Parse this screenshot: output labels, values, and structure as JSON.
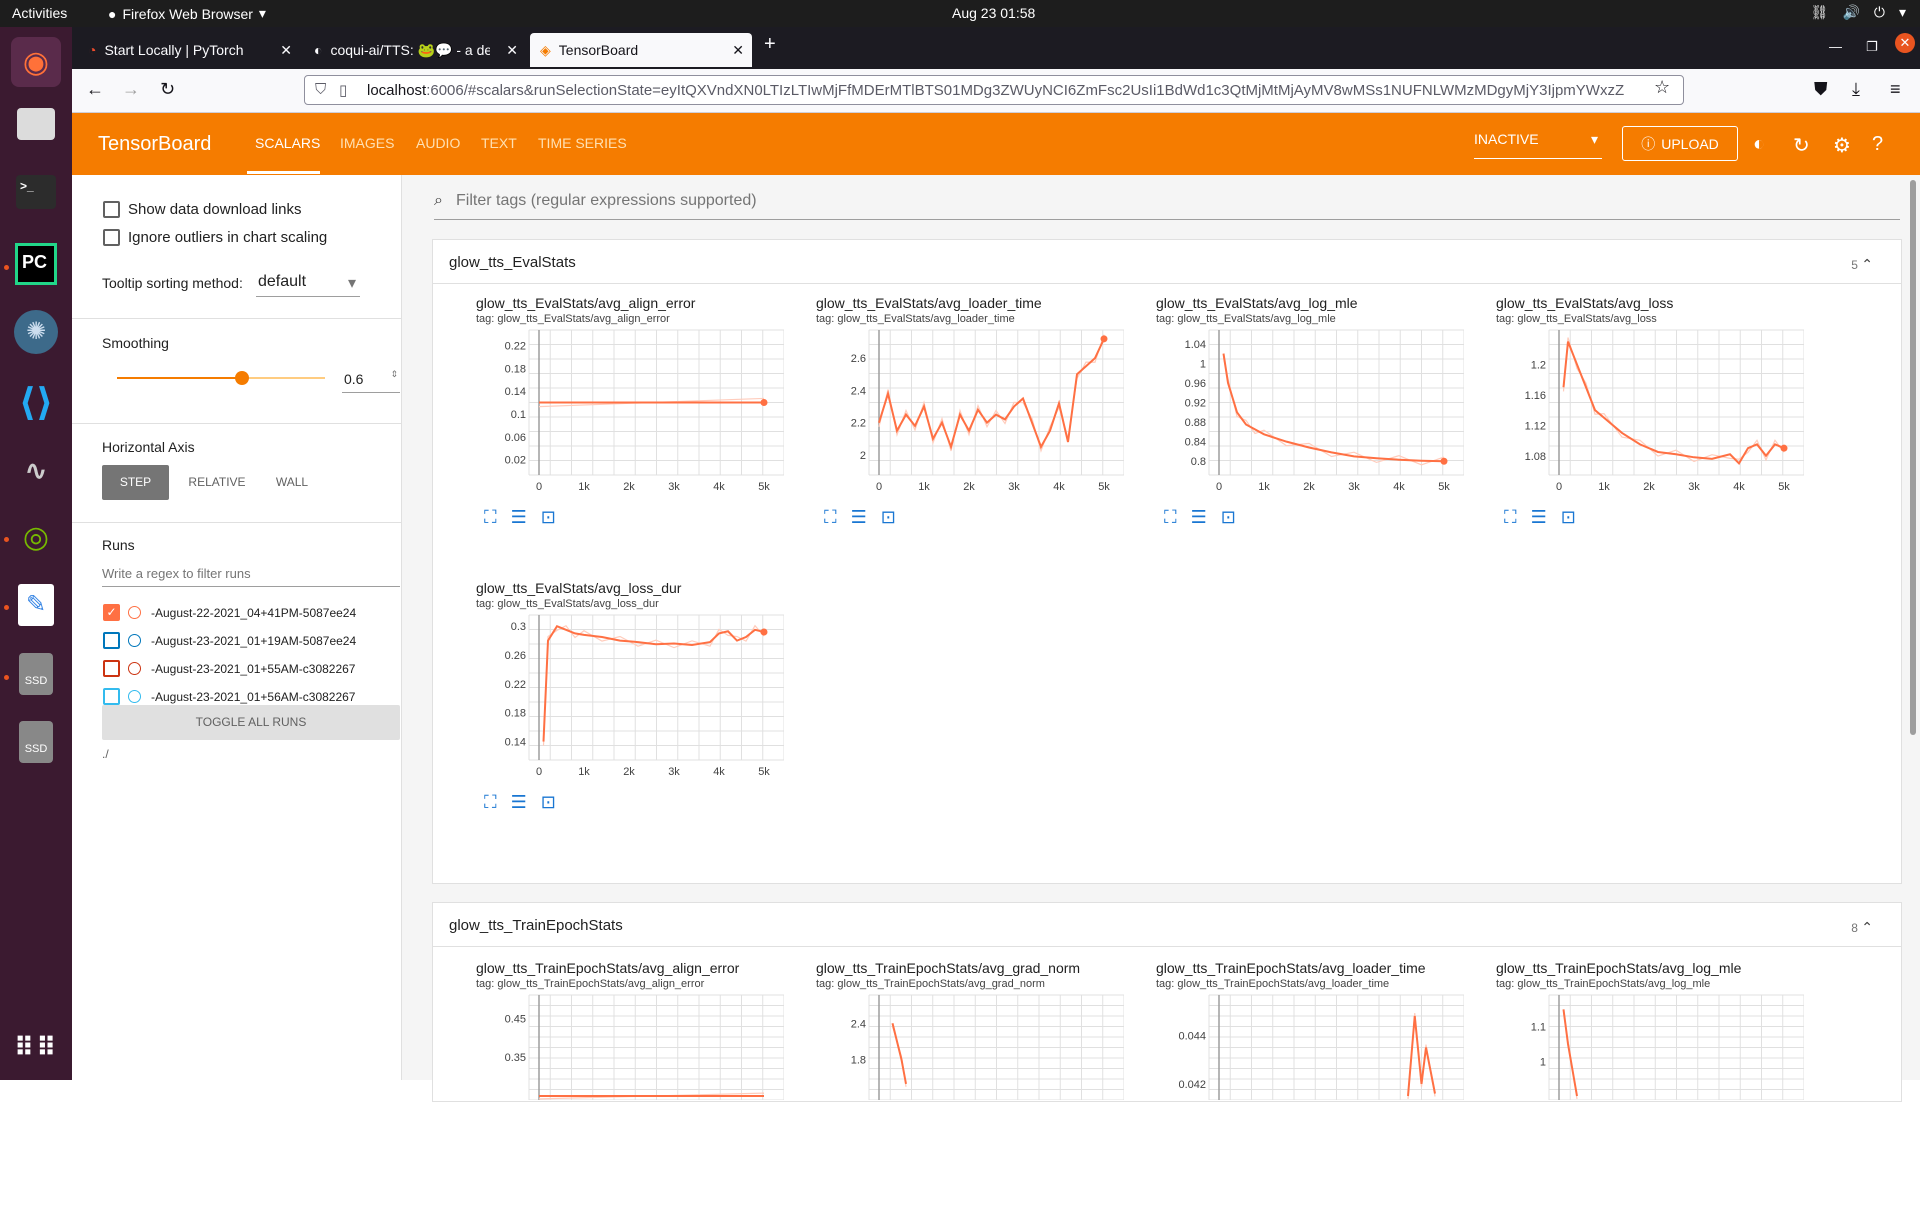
{
  "os": {
    "activities": "Activities",
    "app_menu": "Firefox Web Browser",
    "clock": "Aug 23  01:58"
  },
  "tabs": [
    {
      "label": "Start Locally | PyTorch"
    },
    {
      "label": "coqui-ai/TTS: 🐸💬 - a dee"
    },
    {
      "label": "TensorBoard"
    }
  ],
  "url": {
    "host": "localhost",
    "rest": ":6006/#scalars&runSelectionState=eyItQXVndXN0LTIzLTIwMjFfMDErMTlBTS01MDg3ZWUyNCI6ZmFsc2UsIi1BdWd1c3QtMjMtMjAyMV8wMSs1NUFNLWMzMDgyMjY3IjpmYWxzZ"
  },
  "tensorboard": {
    "brand": "TensorBoard",
    "nav": [
      "SCALARS",
      "IMAGES",
      "AUDIO",
      "TEXT",
      "TIME SERIES"
    ],
    "status": "INACTIVE",
    "upload": "UPLOAD"
  },
  "sidebar": {
    "show_download": "Show data download links",
    "ignore_outliers": "Ignore outliers in chart scaling",
    "tooltip_label": "Tooltip sorting method:",
    "tooltip_value": "default",
    "smoothing_label": "Smoothing",
    "smoothing_value": "0.6",
    "smoothing_fraction": 0.6,
    "haxis_label": "Horizontal Axis",
    "haxis_buttons": [
      "STEP",
      "RELATIVE",
      "WALL"
    ],
    "runs_label": "Runs",
    "runs_placeholder": "Write a regex to filter runs",
    "runs": [
      {
        "name": "-August-22-2021_04+41PM-5087ee24",
        "checked": true,
        "color": "#ff7043"
      },
      {
        "name": "-August-23-2021_01+19AM-5087ee24",
        "checked": false,
        "color": "#0077bb"
      },
      {
        "name": "-August-23-2021_01+55AM-c3082267",
        "checked": false,
        "color": "#cc3311"
      },
      {
        "name": "-August-23-2021_01+56AM-c3082267",
        "checked": false,
        "color": "#33bbee"
      }
    ],
    "toggle_all": "TOGGLE ALL RUNS",
    "logdir": "./"
  },
  "filter_placeholder": "Filter tags (regular expressions supported)",
  "groups": [
    {
      "title": "glow_tts_EvalStats",
      "count": "5"
    },
    {
      "title": "glow_tts_TrainEpochStats",
      "count": "8"
    }
  ],
  "chart_data": [
    {
      "type": "line",
      "title": "glow_tts_EvalStats/avg_align_error",
      "tag": "tag: glow_tts_EvalStats/avg_align_error",
      "xticks": [
        "0",
        "1k",
        "2k",
        "3k",
        "4k",
        "5k"
      ],
      "yticks": [
        "0.22",
        "0.18",
        "0.14",
        "0.1",
        "0.06",
        "0.02"
      ],
      "xlim": [
        0,
        5000
      ],
      "ylim": [
        0,
        0.24
      ],
      "x": [
        0,
        5000
      ],
      "y": [
        0.12,
        0.12
      ]
    },
    {
      "type": "line",
      "title": "glow_tts_EvalStats/avg_loader_time",
      "tag": "tag: glow_tts_EvalStats/avg_loader_time",
      "xticks": [
        "0",
        "1k",
        "2k",
        "3k",
        "4k",
        "5k"
      ],
      "yticks": [
        "2.6",
        "2.4",
        "2.2",
        "2"
      ],
      "xlim": [
        0,
        5000
      ],
      "ylim": [
        1.9,
        2.75
      ],
      "x": [
        0,
        200,
        400,
        600,
        800,
        1000,
        1200,
        1400,
        1600,
        1800,
        2000,
        2200,
        2400,
        2600,
        2800,
        3000,
        3200,
        3400,
        3600,
        3800,
        4000,
        4200,
        4400,
        4600,
        4800,
        5000
      ],
      "y": [
        2.2,
        2.38,
        2.15,
        2.25,
        2.18,
        2.3,
        2.1,
        2.2,
        2.05,
        2.25,
        2.15,
        2.28,
        2.2,
        2.25,
        2.22,
        2.3,
        2.35,
        2.2,
        2.05,
        2.15,
        2.32,
        2.08,
        2.5,
        2.55,
        2.6,
        2.72
      ]
    },
    {
      "type": "line",
      "title": "glow_tts_EvalStats/avg_log_mle",
      "tag": "tag: glow_tts_EvalStats/avg_log_mle",
      "xticks": [
        "0",
        "1k",
        "2k",
        "3k",
        "4k",
        "5k"
      ],
      "yticks": [
        "1.04",
        "1",
        "0.96",
        "0.92",
        "0.88",
        "0.84",
        "0.8"
      ],
      "xlim": [
        0,
        5000
      ],
      "ylim": [
        0.78,
        1.06
      ],
      "x": [
        100,
        200,
        400,
        600,
        800,
        1000,
        1500,
        2000,
        2500,
        3000,
        3500,
        4000,
        4500,
        5000
      ],
      "y": [
        1.02,
        0.96,
        0.9,
        0.875,
        0.865,
        0.855,
        0.84,
        0.828,
        0.818,
        0.81,
        0.806,
        0.803,
        0.801,
        0.8
      ]
    },
    {
      "type": "line",
      "title": "glow_tts_EvalStats/avg_loss",
      "tag": "tag: glow_tts_EvalStats/avg_loss",
      "xticks": [
        "0",
        "1k",
        "2k",
        "3k",
        "4k",
        "5k"
      ],
      "yticks": [
        "1.2",
        "1.16",
        "1.12",
        "1.08"
      ],
      "xlim": [
        0,
        5000
      ],
      "ylim": [
        1.06,
        1.24
      ],
      "x": [
        100,
        200,
        400,
        600,
        800,
        1000,
        1400,
        1800,
        2200,
        2600,
        3000,
        3400,
        3800,
        4000,
        4200,
        4400,
        4600,
        4800,
        5000
      ],
      "y": [
        1.17,
        1.23,
        1.2,
        1.17,
        1.14,
        1.13,
        1.11,
        1.095,
        1.085,
        1.082,
        1.078,
        1.076,
        1.082,
        1.07,
        1.09,
        1.095,
        1.08,
        1.095,
        1.09
      ]
    },
    {
      "type": "line",
      "title": "glow_tts_EvalStats/avg_loss_dur",
      "tag": "tag: glow_tts_EvalStats/avg_loss_dur",
      "xticks": [
        "0",
        "1k",
        "2k",
        "3k",
        "4k",
        "5k"
      ],
      "yticks": [
        "0.3",
        "0.26",
        "0.22",
        "0.18",
        "0.14"
      ],
      "xlim": [
        0,
        5000
      ],
      "ylim": [
        0.12,
        0.31
      ],
      "x": [
        100,
        200,
        400,
        600,
        800,
        1000,
        1400,
        1800,
        2200,
        2600,
        3000,
        3400,
        3800,
        4000,
        4200,
        4400,
        4600,
        4800,
        5000
      ],
      "y": [
        0.14,
        0.28,
        0.3,
        0.295,
        0.29,
        0.288,
        0.285,
        0.28,
        0.278,
        0.275,
        0.276,
        0.274,
        0.278,
        0.29,
        0.293,
        0.28,
        0.285,
        0.295,
        0.292
      ]
    },
    {
      "type": "line",
      "title": "glow_tts_TrainEpochStats/avg_align_error",
      "tag": "tag: glow_tts_TrainEpochStats/avg_align_error",
      "xticks": [],
      "yticks": [
        "0.45",
        "0.35"
      ],
      "xlim": [
        0,
        5000
      ],
      "ylim": [
        0.25,
        0.5
      ],
      "x": [
        0,
        5000
      ],
      "y": [
        0.25,
        0.25
      ]
    },
    {
      "type": "line",
      "title": "glow_tts_TrainEpochStats/avg_grad_norm",
      "tag": "tag: glow_tts_TrainEpochStats/avg_grad_norm",
      "xticks": [],
      "yticks": [
        "2.4",
        "1.8"
      ],
      "xlim": [
        0,
        5000
      ],
      "ylim": [
        1.2,
        2.8
      ],
      "x": [
        300,
        500,
        600
      ],
      "y": [
        2.4,
        1.8,
        1.4
      ]
    },
    {
      "type": "line",
      "title": "glow_tts_TrainEpochStats/avg_loader_time",
      "tag": "tag: glow_tts_TrainEpochStats/avg_loader_time",
      "xticks": [],
      "yticks": [
        "0.044",
        "0.042"
      ],
      "xlim": [
        0,
        5000
      ],
      "ylim": [
        0.0415,
        0.0455
      ],
      "x": [
        4200,
        4350,
        4500,
        4600,
        4800
      ],
      "y": [
        0.0415,
        0.0448,
        0.042,
        0.0435,
        0.0416
      ]
    },
    {
      "type": "line",
      "title": "glow_tts_TrainEpochStats/avg_log_mle",
      "tag": "tag: glow_tts_TrainEpochStats/avg_log_mle",
      "xticks": [],
      "yticks": [
        "1.1",
        "1"
      ],
      "xlim": [
        0,
        5000
      ],
      "ylim": [
        0.9,
        1.18
      ],
      "x": [
        100,
        200,
        400
      ],
      "y": [
        1.15,
        1.05,
        0.9
      ]
    }
  ]
}
